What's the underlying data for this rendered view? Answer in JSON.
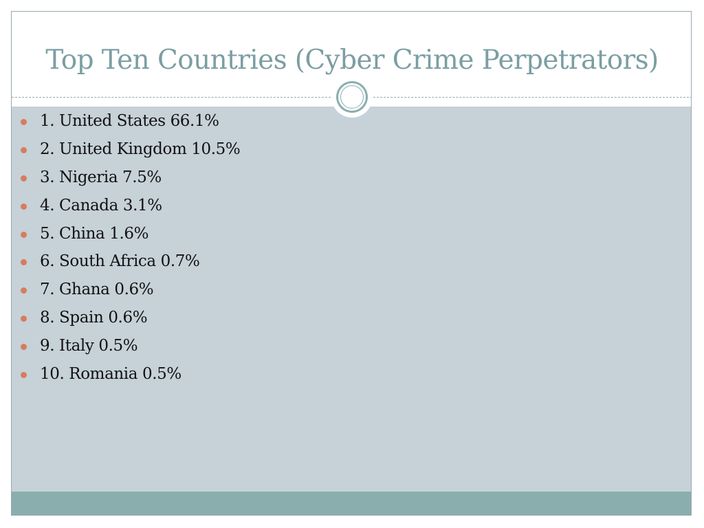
{
  "slide": {
    "title": "Top Ten Countries (Cyber Crime Perpetrators)",
    "bullets": [
      "1. United States 66.1%",
      "2. United Kingdom 10.5%",
      "3. Nigeria 7.5%",
      "4. Canada 3.1%",
      "5. China 1.6%",
      "6. South Africa 0.7%",
      "7. Ghana 0.6%",
      "8. Spain 0.6%",
      "9. Italy 0.5%",
      "10. Romania 0.5%"
    ]
  },
  "colors": {
    "title": "#7b9ea3",
    "content_background": "#c6d1d8",
    "footer_bar": "#8aaeae",
    "bullet": "#d97b5d",
    "text": "#111111"
  }
}
